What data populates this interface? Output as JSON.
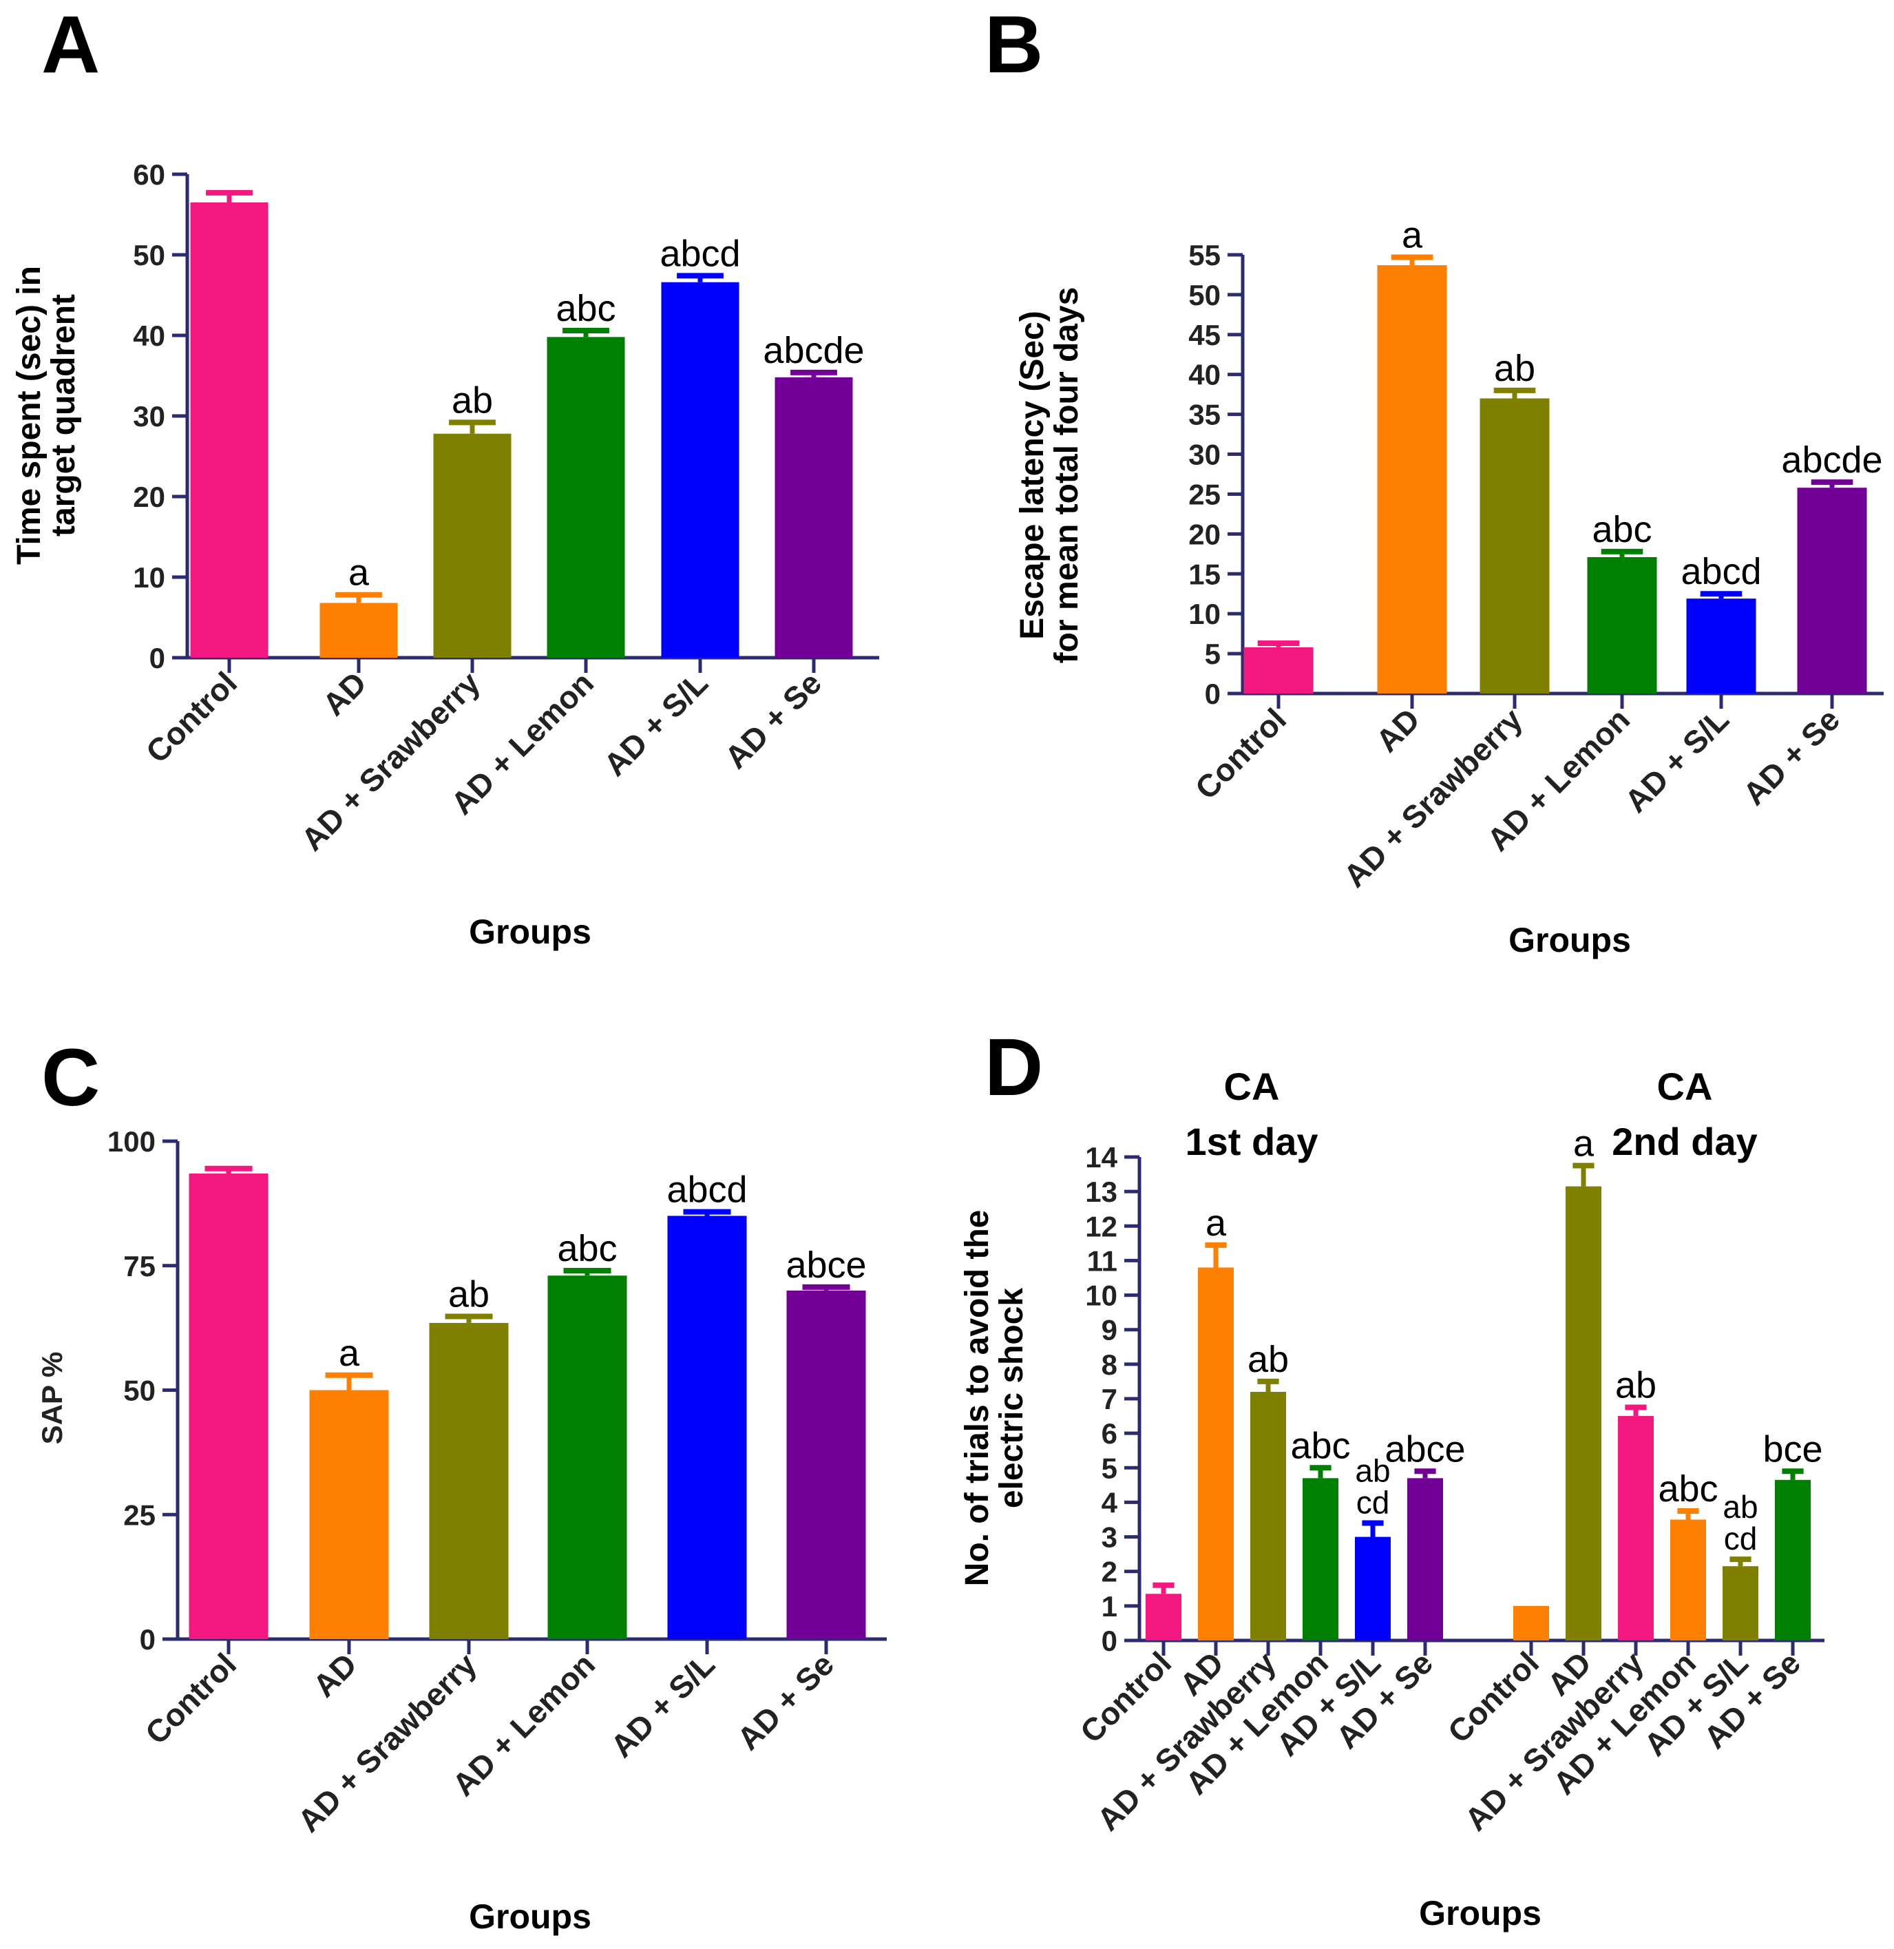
{
  "chart_data": [
    {
      "panel": "A",
      "type": "bar",
      "categories": [
        "Control",
        "AD",
        "AD + Srawberry",
        "AD + Lemon",
        "AD + S/L",
        "AD + Se"
      ],
      "values": [
        56.5,
        6.8,
        27.8,
        39.8,
        46.6,
        34.8
      ],
      "errors": [
        1.2,
        1.0,
        1.4,
        0.8,
        0.8,
        0.6
      ],
      "significance": [
        "",
        "a",
        "ab",
        "abc",
        "abcd",
        "abcde"
      ],
      "colors": [
        "#f4177f",
        "#ff7f00",
        "#808000",
        "#008000",
        "#0000ff",
        "#720096"
      ],
      "ylabel": [
        "Time spent (sec) in",
        "target quadrent"
      ],
      "xlabel": "Groups",
      "ylim": [
        0,
        60
      ],
      "yticks": [
        0,
        10,
        20,
        30,
        40,
        50,
        60
      ]
    },
    {
      "panel": "B",
      "type": "bar",
      "categories": [
        "Control",
        "AD",
        "AD + Srawberry",
        "AD + Lemon",
        "AD + S/L",
        "AD + Se"
      ],
      "values": [
        5.8,
        53.7,
        37.0,
        17.1,
        11.9,
        25.8
      ],
      "errors": [
        0.5,
        1.0,
        1.0,
        0.7,
        0.6,
        0.7
      ],
      "significance": [
        "",
        "a",
        "ab",
        "abc",
        "abcd",
        "abcde"
      ],
      "colors": [
        "#f4177f",
        "#ff7f00",
        "#808000",
        "#008000",
        "#0000ff",
        "#720096"
      ],
      "ylabel": [
        "Escape latency (Sec)",
        "for mean total four days"
      ],
      "xlabel": "Groups",
      "ylim": [
        0,
        55
      ],
      "yticks": [
        0,
        5,
        10,
        15,
        20,
        25,
        30,
        35,
        40,
        45,
        50,
        55
      ]
    },
    {
      "panel": "C",
      "type": "bar",
      "categories": [
        "Control",
        "AD",
        "AD + Srawberry",
        "AD + Lemon",
        "AD + S/L",
        "AD + Se"
      ],
      "values": [
        93.5,
        50.0,
        63.5,
        73.0,
        85.0,
        70.0
      ],
      "errors": [
        1.0,
        3.0,
        1.3,
        1.0,
        0.8,
        0.7
      ],
      "significance": [
        "",
        "a",
        "ab",
        "abc",
        "abcd",
        "abce"
      ],
      "colors": [
        "#f4177f",
        "#ff7f00",
        "#808000",
        "#008000",
        "#0000ff",
        "#720096"
      ],
      "ylabel": [
        "SAP %"
      ],
      "xlabel": "Groups",
      "ylim": [
        0,
        100
      ],
      "yticks": [
        0,
        25,
        50,
        75,
        100
      ]
    },
    {
      "panel": "D",
      "type": "bar",
      "categories": [
        "Control",
        "AD",
        "AD + Srawberry",
        "AD + Lemon",
        "AD + S/L",
        "AD + Se",
        "Control",
        "AD",
        "AD + Srawberry",
        "AD + Lemon",
        "AD + S/L",
        "AD + Se"
      ],
      "values": [
        1.35,
        10.8,
        7.2,
        4.7,
        3.0,
        4.7,
        1.0,
        13.15,
        6.5,
        3.5,
        2.15,
        4.65
      ],
      "errors": [
        0.25,
        0.65,
        0.3,
        0.3,
        0.4,
        0.2,
        0,
        0.6,
        0.25,
        0.25,
        0.2,
        0.25
      ],
      "significance": [
        "",
        "a",
        "ab",
        "abc",
        "ab|cd",
        "abce",
        "",
        "a",
        "ab",
        "abc",
        "ab|cd",
        "bce"
      ],
      "colors": [
        "#f4177f",
        "#ff7f00",
        "#808000",
        "#008000",
        "#0000ff",
        "#720096",
        "#ff7f00",
        "#808000",
        "#f4177f",
        "#ff7f00",
        "#808000",
        "#008000"
      ],
      "group_titles": [
        [
          "CA",
          "1st day"
        ],
        [
          "CA",
          "2nd day"
        ]
      ],
      "ylabel": [
        "No. of trials to avoid the",
        "electric shock"
      ],
      "xlabel": "Groups",
      "ylim": [
        0,
        14
      ],
      "yticks": [
        0,
        1,
        2,
        3,
        4,
        5,
        6,
        7,
        8,
        9,
        10,
        11,
        12,
        13,
        14
      ]
    }
  ]
}
